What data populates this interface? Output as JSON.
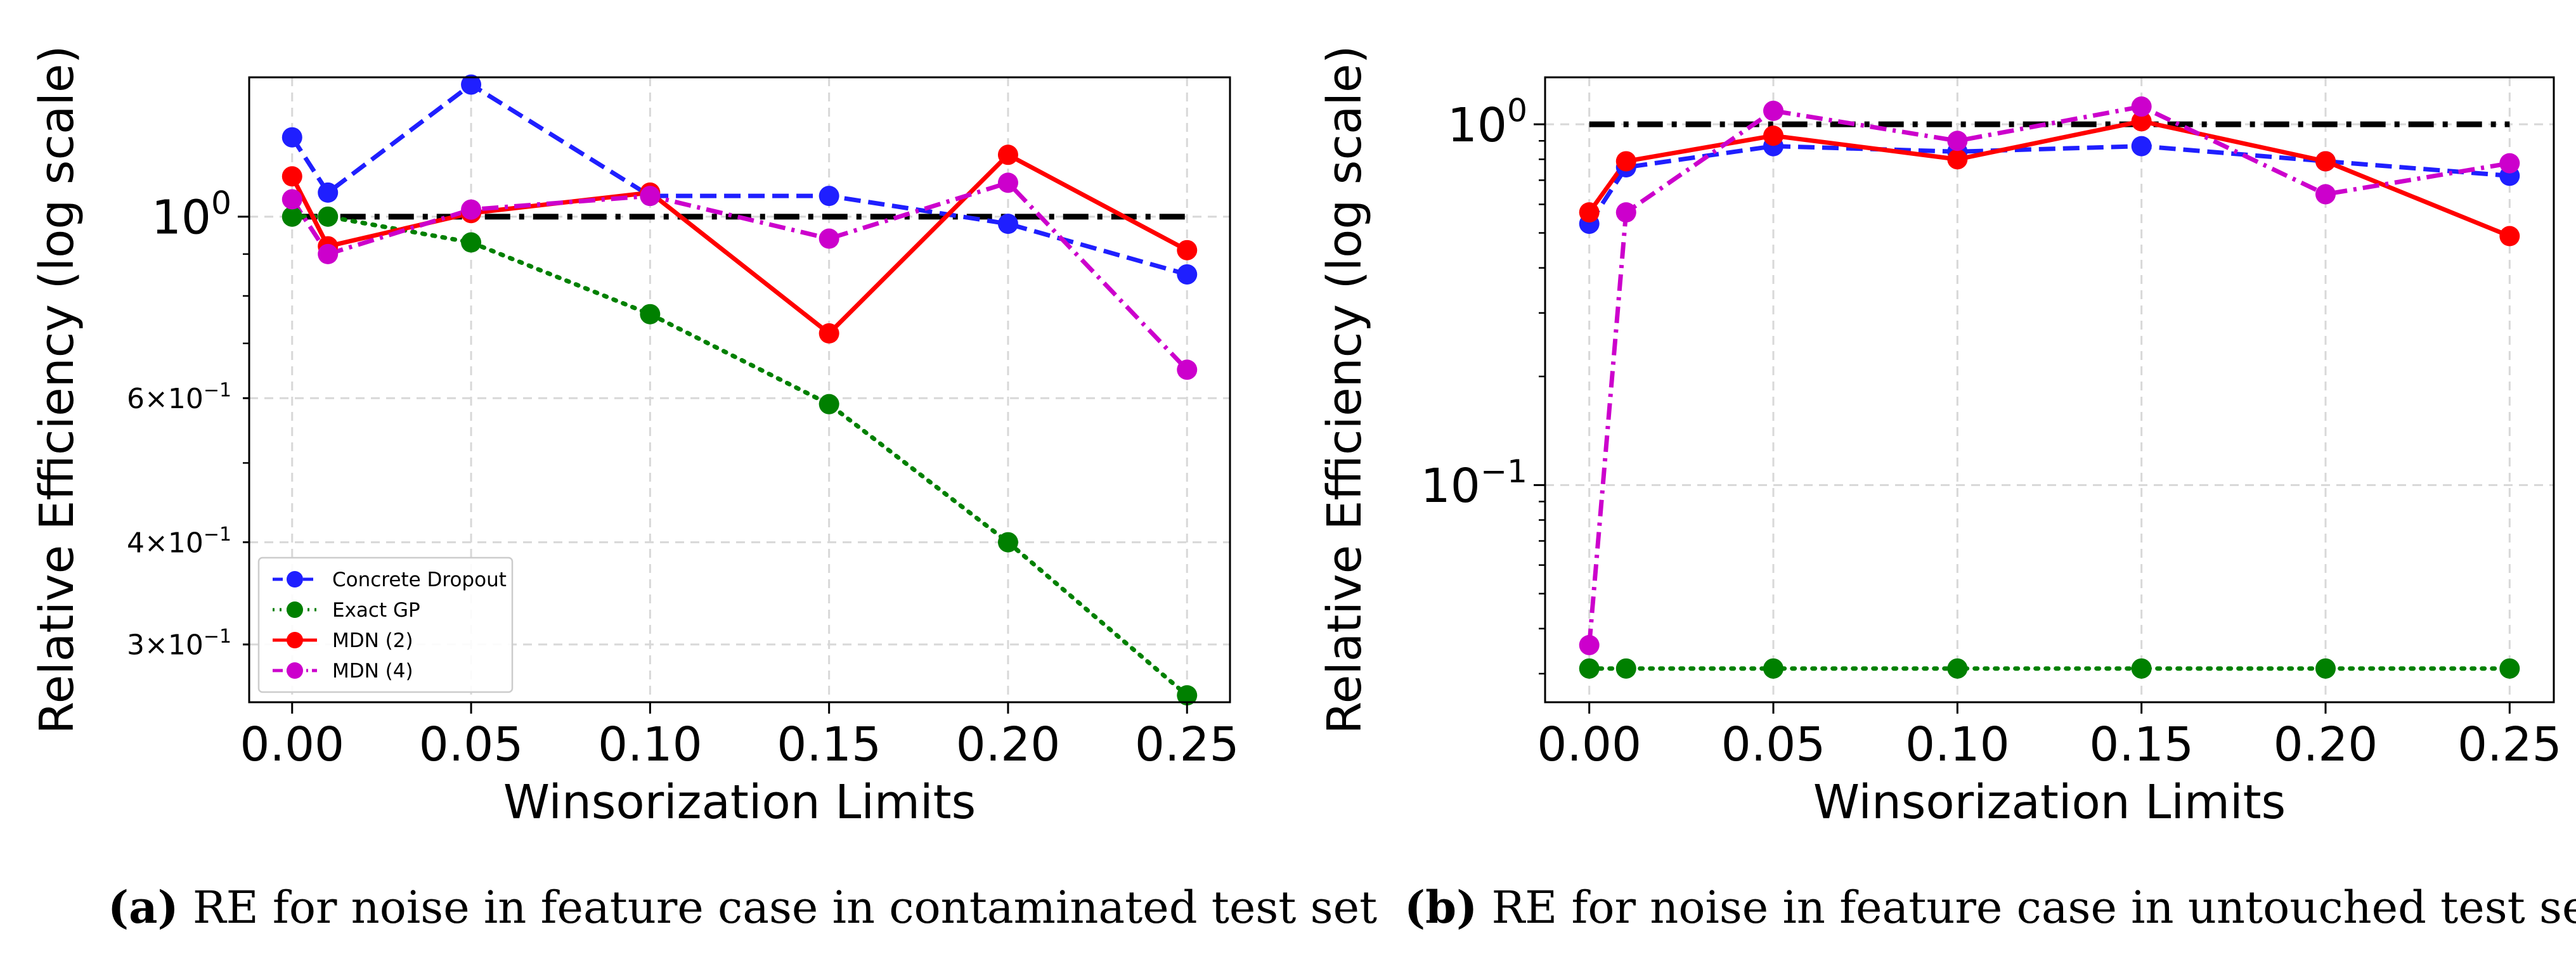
{
  "chart_data": [
    {
      "type": "line",
      "id": "a",
      "title": "",
      "xlabel": "Winsorization Limits",
      "ylabel": "Relative Efficiency (log scale)",
      "yscale": "log",
      "xlim": [
        -0.012,
        0.262
      ],
      "ylim": [
        0.255,
        1.48
      ],
      "x": [
        0.0,
        0.01,
        0.05,
        0.1,
        0.15,
        0.2,
        0.25
      ],
      "xticks": [
        0.0,
        0.05,
        0.1,
        0.15,
        0.2,
        0.25
      ],
      "xtick_labels": [
        "0.00",
        "0.05",
        "0.10",
        "0.15",
        "0.20",
        "0.25"
      ],
      "yticks": [
        {
          "value": 1.0,
          "base": "10",
          "exp": "0",
          "major": true
        },
        {
          "value": 0.6,
          "mant": "6",
          "base": "10",
          "exp": "−1",
          "major": false
        },
        {
          "value": 0.4,
          "mant": "4",
          "base": "10",
          "exp": "−1",
          "major": false
        },
        {
          "value": 0.3,
          "mant": "3",
          "base": "10",
          "exp": "−1",
          "major": false
        }
      ],
      "yminor_unlabeled": [
        0.5,
        0.7,
        0.8,
        0.9
      ],
      "reference_line": 1.0,
      "legend_loc": "lower left",
      "series": [
        {
          "name": "Concrete Dropout",
          "color": "#1f1fff",
          "dash": "dashed",
          "values": [
            1.25,
            1.07,
            1.45,
            1.06,
            1.06,
            0.98,
            0.85
          ]
        },
        {
          "name": "Exact GP",
          "color": "#008000",
          "dash": "dotted",
          "values": [
            1.0,
            1.0,
            0.93,
            0.76,
            0.59,
            0.4,
            0.26
          ]
        },
        {
          "name": "MDN (2)",
          "color": "#ff0000",
          "dash": "solid",
          "values": [
            1.12,
            0.92,
            1.01,
            1.07,
            0.72,
            1.19,
            0.91
          ]
        },
        {
          "name": "MDN (4)",
          "color": "#cc00cc",
          "dash": "dashdot",
          "values": [
            1.05,
            0.9,
            1.02,
            1.06,
            0.94,
            1.1,
            0.65
          ]
        }
      ],
      "caption_letter": "(a)",
      "caption_text": " RE for noise in feature case in contaminated test set"
    },
    {
      "type": "line",
      "id": "b",
      "title": "",
      "xlabel": "Winsorization Limits",
      "ylabel": "Relative Efficiency (log scale)",
      "yscale": "log",
      "xlim": [
        -0.012,
        0.262
      ],
      "ylim": [
        0.025,
        1.35
      ],
      "x": [
        0.0,
        0.01,
        0.05,
        0.1,
        0.15,
        0.2,
        0.25
      ],
      "xticks": [
        0.0,
        0.05,
        0.1,
        0.15,
        0.2,
        0.25
      ],
      "xtick_labels": [
        "0.00",
        "0.05",
        "0.10",
        "0.15",
        "0.20",
        "0.25"
      ],
      "yticks": [
        {
          "value": 1.0,
          "base": "10",
          "exp": "0",
          "major": true
        },
        {
          "value": 0.1,
          "base": "10",
          "exp": "−1",
          "major": true
        }
      ],
      "yminor_unlabeled": [
        0.03,
        0.04,
        0.05,
        0.06,
        0.07,
        0.08,
        0.09,
        0.2,
        0.3,
        0.4,
        0.5,
        0.6,
        0.7,
        0.8,
        0.9
      ],
      "reference_line": 1.0,
      "series": [
        {
          "name": "Concrete Dropout",
          "color": "#1f1fff",
          "dash": "dashed",
          "values": [
            0.53,
            0.76,
            0.87,
            0.84,
            0.87,
            0.79,
            0.72
          ]
        },
        {
          "name": "Exact GP",
          "color": "#008000",
          "dash": "dotted",
          "values": [
            0.031,
            0.031,
            0.031,
            0.031,
            0.031,
            0.031,
            0.031
          ]
        },
        {
          "name": "MDN (2)",
          "color": "#ff0000",
          "dash": "solid",
          "values": [
            0.57,
            0.79,
            0.93,
            0.8,
            1.02,
            0.79,
            0.49
          ]
        },
        {
          "name": "MDN (4)",
          "color": "#cc00cc",
          "dash": "dashdot",
          "values": [
            0.036,
            0.57,
            1.09,
            0.9,
            1.12,
            0.64,
            0.78
          ]
        }
      ],
      "caption_letter": "(b)",
      "caption_text": " RE for noise in feature case in untouched test set"
    }
  ]
}
